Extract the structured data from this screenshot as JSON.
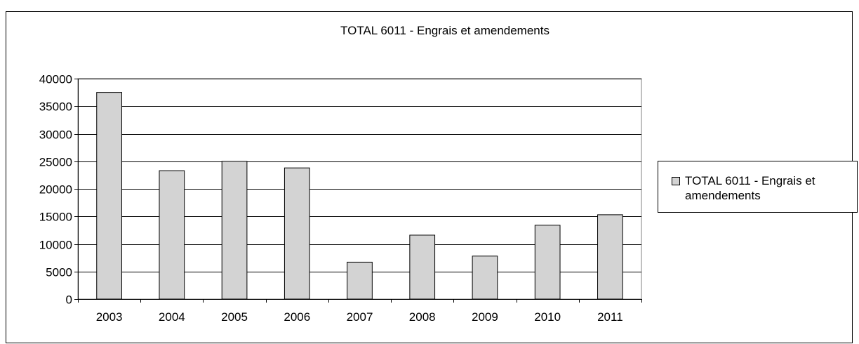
{
  "chart_data": {
    "type": "bar",
    "title": "TOTAL 6011 - Engrais et amendements",
    "xlabel": "",
    "ylabel": "",
    "categories": [
      "2003",
      "2004",
      "2005",
      "2006",
      "2007",
      "2008",
      "2009",
      "2010",
      "2011"
    ],
    "series": [
      {
        "name": "TOTAL 6011 - Engrais et amendements",
        "values": [
          37500,
          23300,
          25000,
          23800,
          6700,
          11600,
          7800,
          13400,
          15300
        ],
        "color": "#d3d3d3"
      }
    ],
    "ylim": [
      0,
      40000
    ],
    "yticks": [
      "0",
      "5000",
      "10000",
      "15000",
      "20000",
      "25000",
      "30000",
      "35000",
      "40000"
    ],
    "grid": true,
    "legend_position": "right"
  }
}
